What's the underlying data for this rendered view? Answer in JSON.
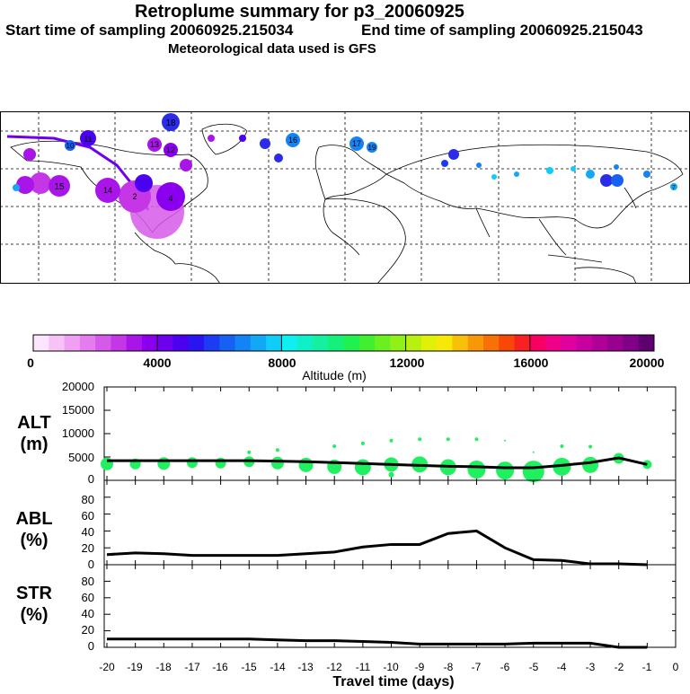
{
  "header": {
    "title": "Retroplume summary for p3_20060925",
    "start": "Start time of sampling 20060925.215034",
    "end": "End time of sampling 20060925.215043",
    "met": "Meteorological data used is GFS"
  },
  "colorbar": {
    "label": "Altitude (m)",
    "ticks": [
      "0",
      "4000",
      "8000",
      "12000",
      "16000",
      "20000"
    ],
    "colors": [
      "#fde6fd",
      "#f7c3f7",
      "#efa0f2",
      "#e47ced",
      "#d65ae9",
      "#c536e6",
      "#a914e8",
      "#8a00ee",
      "#6e00f0",
      "#4c00f0",
      "#2a14f0",
      "#1b3cf2",
      "#1660f2",
      "#1484f4",
      "#12a8f6",
      "#10ccf8",
      "#0ef0f0",
      "#10f0c8",
      "#12f0a0",
      "#14f078",
      "#20f050",
      "#40f030",
      "#68f020",
      "#90f018",
      "#b8f010",
      "#e0f008",
      "#f8e808",
      "#f8c008",
      "#f89808",
      "#f87008",
      "#f84808",
      "#f82020",
      "#f80060",
      "#f00088",
      "#e000a0",
      "#c800a0",
      "#b00098",
      "#980090",
      "#800088",
      "#600070"
    ]
  },
  "map": {
    "markers": [
      {
        "label": "18",
        "color": "#2a2ce8"
      },
      {
        "label": "11",
        "color": "#2a2ce8"
      },
      {
        "label": "10",
        "color": "#2a2ce8"
      },
      {
        "label": "13",
        "color": "#a914e8"
      },
      {
        "label": "12",
        "color": "#a914e8"
      },
      {
        "label": "16",
        "color": "#1484f4"
      },
      {
        "label": "17",
        "color": "#1484f4"
      },
      {
        "label": "19",
        "color": "#1484f4"
      },
      {
        "label": "15",
        "color": "#c536e6"
      },
      {
        "label": "14",
        "color": "#c536e6"
      },
      {
        "label": "2",
        "color": "#c536e6"
      },
      {
        "label": "4",
        "color": "#8a00ee"
      },
      {
        "label": "7",
        "color": "#12a8f6"
      }
    ]
  },
  "chart_data": [
    {
      "type": "scatter",
      "name": "ALT",
      "ylabel": "ALT (m)",
      "xlabel": "Travel time (days)",
      "xlim": [
        -20,
        0
      ],
      "ylim": [
        0,
        20000
      ],
      "yticks": [
        "20000",
        "15000",
        "10000",
        "5000",
        "0"
      ],
      "line": {
        "x": [
          -20,
          -19,
          -18,
          -17,
          -16,
          -15,
          -14,
          -13,
          -12,
          -11,
          -10,
          -9,
          -8,
          -7,
          -6,
          -5,
          -4,
          -3,
          -2,
          -1
        ],
        "y": [
          4200,
          4200,
          4200,
          4200,
          4200,
          4200,
          4100,
          4000,
          3800,
          3600,
          3400,
          3200,
          3000,
          2900,
          2700,
          2700,
          3200,
          3800,
          4800,
          3400
        ]
      },
      "points": [
        {
          "x": -20,
          "y": 3500,
          "s": 7
        },
        {
          "x": -19,
          "y": 3500,
          "s": 6
        },
        {
          "x": -18,
          "y": 3600,
          "s": 7
        },
        {
          "x": -17,
          "y": 3800,
          "s": 6
        },
        {
          "x": -16,
          "y": 3700,
          "s": 6
        },
        {
          "x": -15,
          "y": 4000,
          "s": 6
        },
        {
          "x": -15,
          "y": 6000,
          "s": 2
        },
        {
          "x": -14,
          "y": 3700,
          "s": 7
        },
        {
          "x": -14,
          "y": 6500,
          "s": 2
        },
        {
          "x": -13,
          "y": 3300,
          "s": 8
        },
        {
          "x": -12,
          "y": 2900,
          "s": 8
        },
        {
          "x": -12,
          "y": 7300,
          "s": 2
        },
        {
          "x": -11,
          "y": 2800,
          "s": 9
        },
        {
          "x": -11,
          "y": 7900,
          "s": 2
        },
        {
          "x": -10,
          "y": 3400,
          "s": 8
        },
        {
          "x": -10,
          "y": 8500,
          "s": 2
        },
        {
          "x": -10,
          "y": 1200,
          "s": 3
        },
        {
          "x": -9,
          "y": 3400,
          "s": 9
        },
        {
          "x": -9,
          "y": 8800,
          "s": 2
        },
        {
          "x": -8,
          "y": 2800,
          "s": 9
        },
        {
          "x": -8,
          "y": 8800,
          "s": 2
        },
        {
          "x": -7,
          "y": 2300,
          "s": 10
        },
        {
          "x": -7,
          "y": 8800,
          "s": 2
        },
        {
          "x": -6,
          "y": 2100,
          "s": 10
        },
        {
          "x": -6,
          "y": 8500,
          "s": 1
        },
        {
          "x": -5,
          "y": 1900,
          "s": 12
        },
        {
          "x": -5,
          "y": 6000,
          "s": 1
        },
        {
          "x": -4,
          "y": 2900,
          "s": 10
        },
        {
          "x": -4,
          "y": 7300,
          "s": 2
        },
        {
          "x": -3,
          "y": 3300,
          "s": 9
        },
        {
          "x": -3,
          "y": 7200,
          "s": 2
        },
        {
          "x": -2,
          "y": 4700,
          "s": 6
        },
        {
          "x": -1,
          "y": 3400,
          "s": 5
        }
      ]
    },
    {
      "type": "line",
      "name": "ABL",
      "ylabel": "ABL (%)",
      "xlim": [
        -20,
        0
      ],
      "ylim": [
        0,
        100
      ],
      "yticks": [
        "80",
        "60",
        "40",
        "20",
        "0"
      ],
      "x": [
        -20,
        -19,
        -18,
        -17,
        -16,
        -15,
        -14,
        -13,
        -12,
        -11,
        -10,
        -9,
        -8,
        -7,
        -6,
        -5,
        -4,
        -3,
        -2,
        -1
      ],
      "y": [
        12,
        14,
        13,
        11,
        11,
        11,
        11,
        13,
        15,
        21,
        24,
        24,
        37,
        40,
        20,
        6,
        5,
        1,
        1,
        0
      ]
    },
    {
      "type": "line",
      "name": "STR",
      "ylabel": "STR (%)",
      "xlim": [
        -20,
        0
      ],
      "ylim": [
        0,
        100
      ],
      "yticks": [
        "80",
        "60",
        "40",
        "20",
        "0"
      ],
      "x": [
        -20,
        -19,
        -18,
        -17,
        -16,
        -15,
        -14,
        -13,
        -12,
        -11,
        -10,
        -9,
        -8,
        -7,
        -6,
        -5,
        -4,
        -3,
        -2,
        -1
      ],
      "y": [
        10,
        10,
        10,
        10,
        10,
        10,
        9,
        8,
        8,
        7,
        6,
        4,
        4,
        4,
        4,
        5,
        5,
        5,
        0,
        0
      ]
    }
  ],
  "xaxis": {
    "ticks": [
      "-20",
      "-19",
      "-18",
      "-17",
      "-16",
      "-15",
      "-14",
      "-13",
      "-12",
      "-11",
      "-10",
      "-9",
      "-8",
      "-7",
      "-6",
      "-5",
      "-4",
      "-3",
      "-2",
      "-1",
      "0"
    ],
    "label": "Travel time (days)"
  },
  "panel_labels": {
    "alt": [
      "ALT",
      "(m)"
    ],
    "abl": [
      "ABL",
      "(%)"
    ],
    "str": [
      "STR",
      "(%)"
    ]
  }
}
